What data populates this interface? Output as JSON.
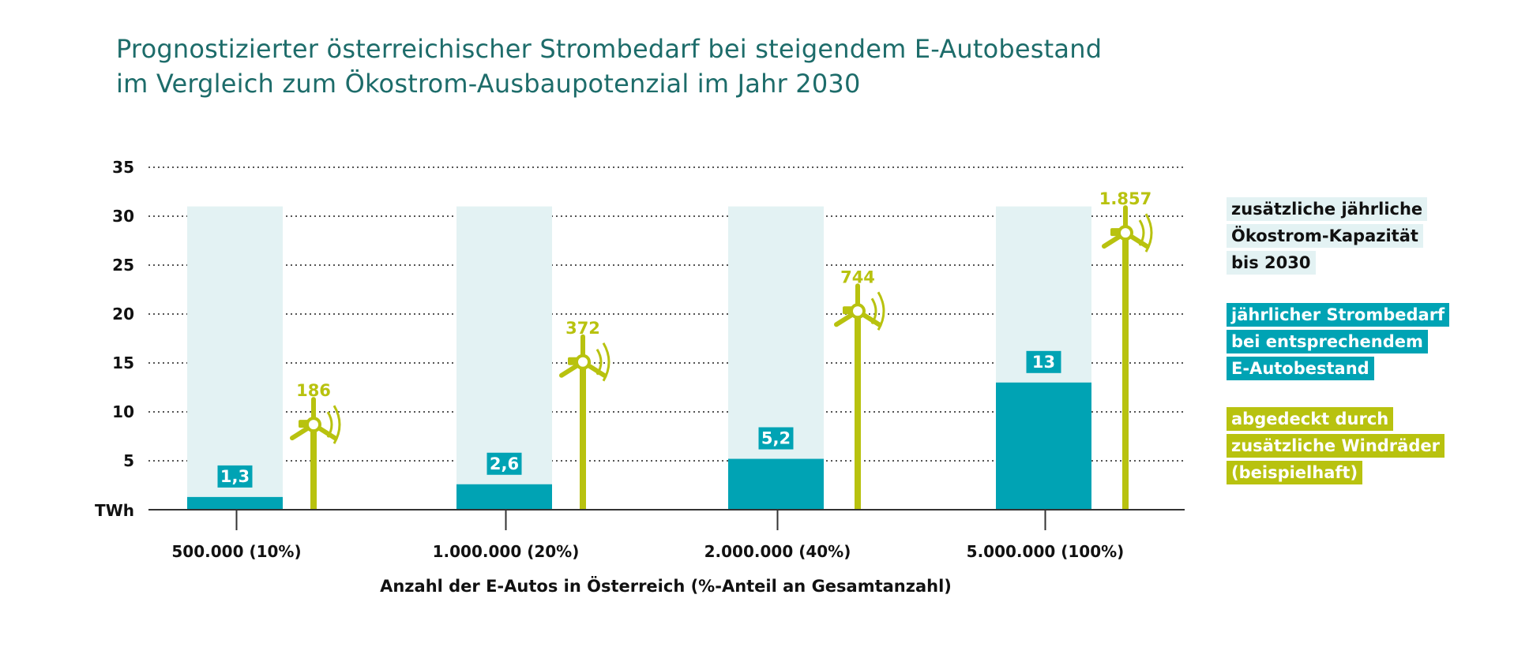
{
  "title_lines": [
    "Prognostizierter österreichischer Strombedarf bei steigendem E-Autobestand",
    "im Vergleich zum Ökostrom-Ausbaupotenzial im Jahr 2030"
  ],
  "colors": {
    "title": "#1d6c6a",
    "capacity": "#e3f2f3",
    "demand": "#00a3b4",
    "wind": "#b8c20f",
    "grid": "#555555",
    "text": "#111111"
  },
  "legend": {
    "capacity": [
      "zusätzliche jährliche",
      "Ökostrom-Kapazität",
      "bis 2030"
    ],
    "demand": [
      "jährlicher Strombedarf",
      "bei entsprechendem",
      "E-Autobestand"
    ],
    "wind": [
      "abgedeckt durch",
      "zusätzliche Windräder",
      "(beispielhaft)"
    ]
  },
  "chart_data": {
    "type": "bar",
    "title": "Prognostizierter österreichischer Strombedarf bei steigendem E-Autobestand im Vergleich zum Ökostrom-Ausbaupotenzial im Jahr 2030",
    "xlabel": "Anzahl der E-Autos in Österreich (%-Anteil an Gesamtanzahl)",
    "ylabel": "TWh",
    "ylim": [
      0,
      35
    ],
    "yticks": [
      5,
      10,
      15,
      20,
      25,
      30,
      35
    ],
    "grid": true,
    "legend_position": "right",
    "categories": [
      "500.000 (10%)",
      "1.000.000 (20%)",
      "2.000.000 (40%)",
      "5.000.000 (100%)"
    ],
    "series": [
      {
        "name": "zusätzliche jährliche Ökostrom-Kapazität bis 2030",
        "values": [
          31,
          31,
          31,
          31
        ]
      },
      {
        "name": "jährlicher Strombedarf bei entsprechendem E-Autobestand",
        "values": [
          1.3,
          2.6,
          5.2,
          13
        ],
        "labels": [
          "1,3",
          "2,6",
          "5,2",
          "13"
        ]
      },
      {
        "name": "abgedeckt durch zusätzliche Windräder (beispielhaft)",
        "values": [
          186,
          372,
          744,
          1857
        ],
        "labels": [
          "186",
          "372",
          "744",
          "1.857"
        ],
        "tower_top_twh": [
          8.7,
          15.1,
          20.3,
          28.3
        ]
      }
    ]
  }
}
